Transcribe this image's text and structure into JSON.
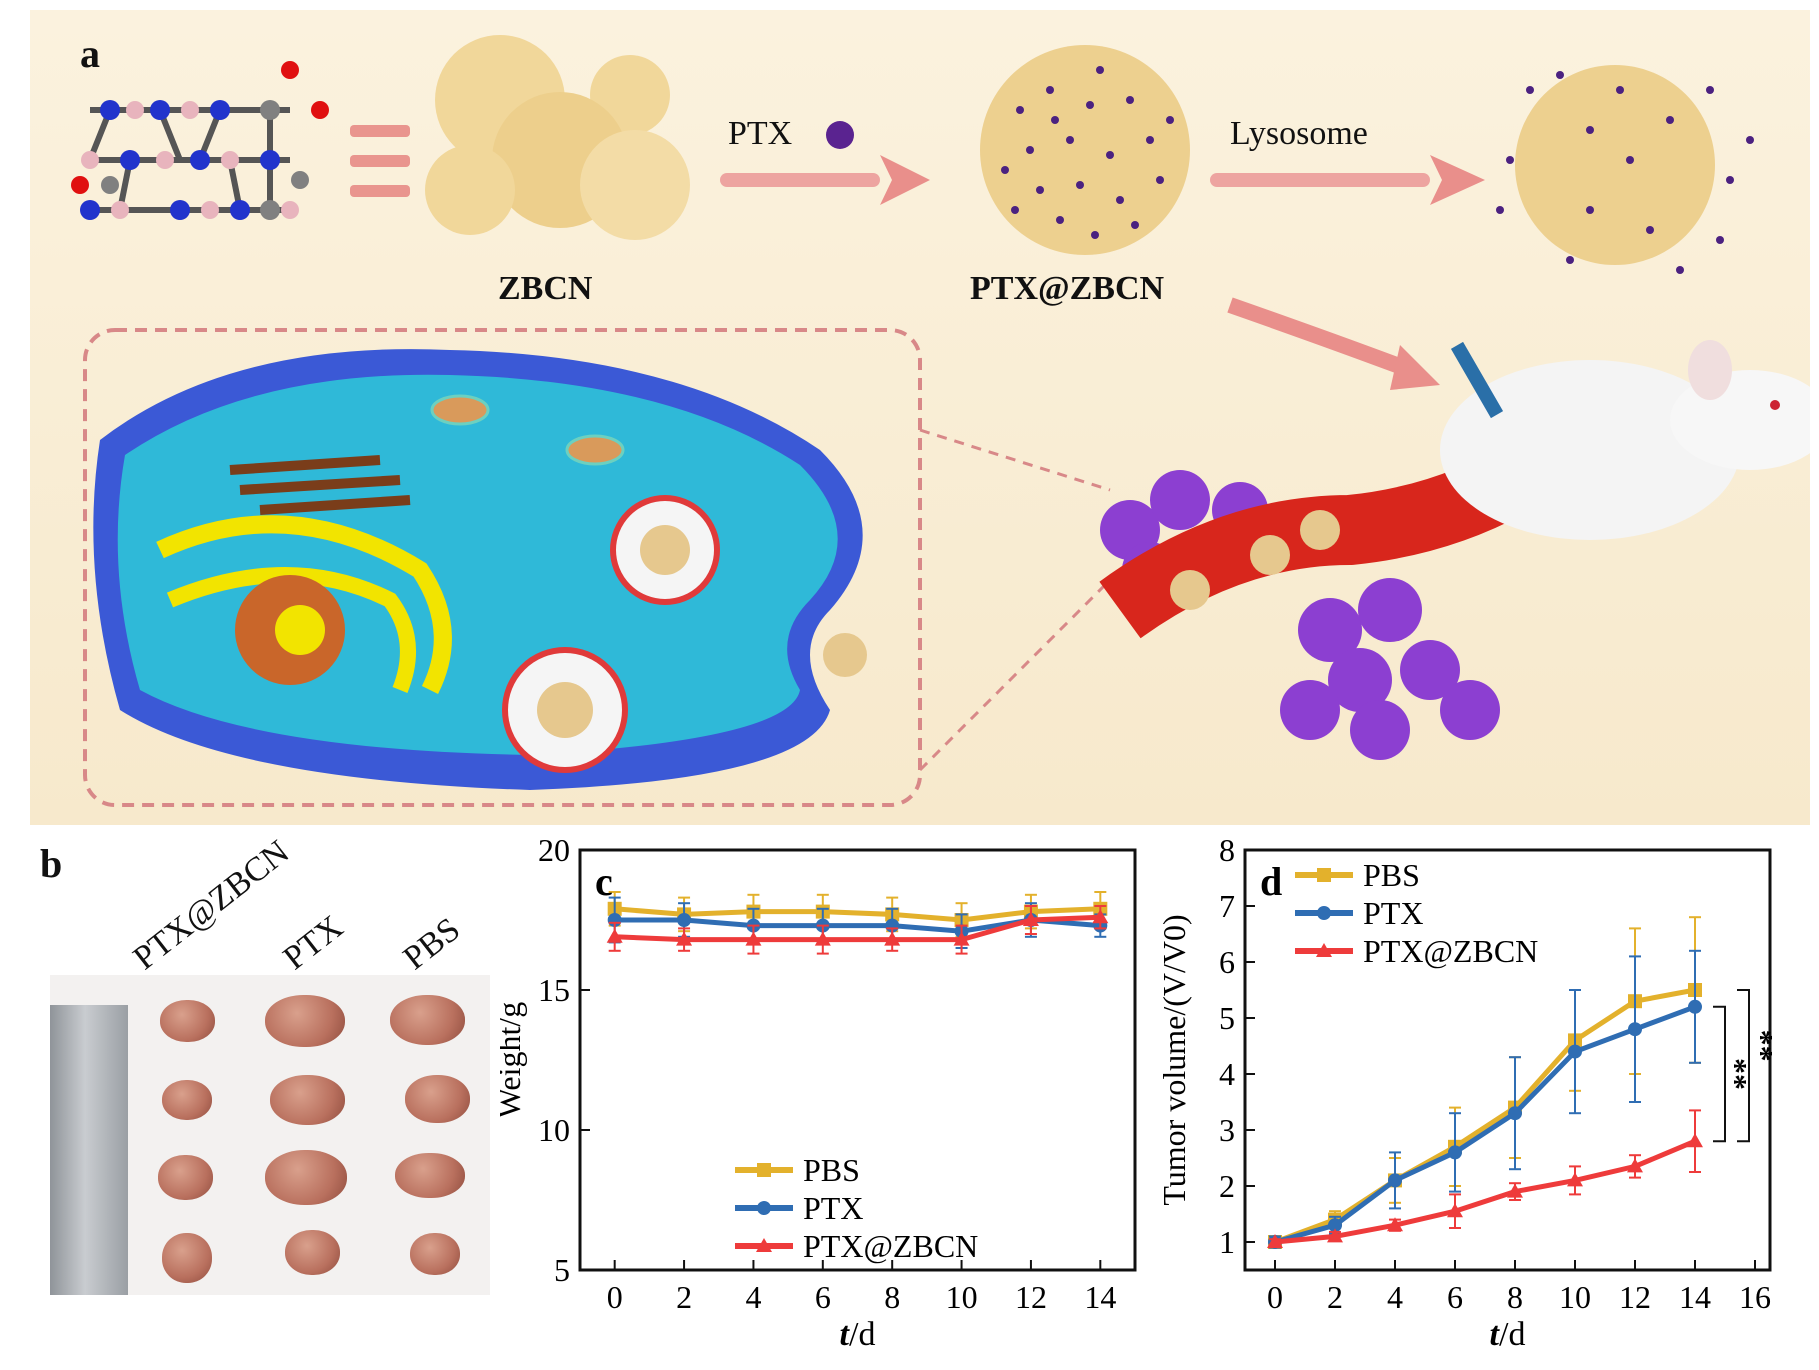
{
  "panel_labels": {
    "a": "a",
    "b": "b",
    "c": "c",
    "d": "d"
  },
  "panel_a": {
    "zbcn": "ZBCN",
    "ptx": "PTX",
    "ptx_zbcn": "PTX@ZBCN",
    "lysosome": "Lysosome"
  },
  "panel_b": {
    "labels": [
      "PTX@ZBCN",
      "PTX",
      "PBS"
    ]
  },
  "colors": {
    "pbs": "#e3b12c",
    "ptx": "#2f6db3",
    "ptx_zbcn": "#ee3b3b"
  },
  "chart_data": [
    {
      "type": "line",
      "panel": "c",
      "xlabel_italic": "t",
      "xlabel_unit": "/d",
      "ylabel": "Weight/g",
      "x": [
        0,
        2,
        4,
        6,
        8,
        10,
        12,
        14
      ],
      "xlim": [
        -1,
        15
      ],
      "ylim": [
        5,
        20
      ],
      "xticks": [
        "0",
        "2",
        "4",
        "6",
        "8",
        "10",
        "12",
        "14"
      ],
      "yticks": [
        "5",
        "10",
        "15",
        "20"
      ],
      "series": [
        {
          "name": "PBS",
          "values": [
            17.9,
            17.7,
            17.8,
            17.8,
            17.7,
            17.5,
            17.8,
            17.9
          ],
          "err": [
            0.6,
            0.6,
            0.6,
            0.6,
            0.6,
            0.6,
            0.6,
            0.6
          ]
        },
        {
          "name": "PTX",
          "values": [
            17.5,
            17.5,
            17.3,
            17.3,
            17.3,
            17.1,
            17.5,
            17.3
          ],
          "err": [
            0.8,
            0.6,
            0.6,
            0.6,
            0.6,
            0.6,
            0.6,
            0.4
          ]
        },
        {
          "name": "PTX@ZBCN",
          "values": [
            16.9,
            16.8,
            16.8,
            16.8,
            16.8,
            16.8,
            17.5,
            17.6
          ],
          "err": [
            0.5,
            0.4,
            0.5,
            0.5,
            0.4,
            0.5,
            0.5,
            0.4
          ]
        }
      ],
      "legend": "bottom-right"
    },
    {
      "type": "line",
      "panel": "d",
      "xlabel_italic": "t",
      "xlabel_unit": "/d",
      "ylabel": "Tumor volume/(V/V0)",
      "x": [
        0,
        2,
        4,
        6,
        8,
        10,
        12,
        14
      ],
      "xlim": [
        -1,
        16.5
      ],
      "ylim": [
        0.5,
        8
      ],
      "xticks": [
        "0",
        "2",
        "4",
        "6",
        "8",
        "10",
        "12",
        "14",
        "16"
      ],
      "yticks": [
        "1",
        "2",
        "3",
        "4",
        "5",
        "6",
        "7",
        "8"
      ],
      "series": [
        {
          "name": "PBS",
          "values": [
            1.0,
            1.4,
            2.1,
            2.7,
            3.4,
            4.6,
            5.3,
            5.5
          ],
          "err": [
            0.1,
            0.15,
            0.4,
            0.7,
            0.9,
            0.9,
            1.3,
            1.3
          ]
        },
        {
          "name": "PTX",
          "values": [
            1.0,
            1.3,
            2.1,
            2.6,
            3.3,
            4.4,
            4.8,
            5.2
          ],
          "err": [
            0.1,
            0.15,
            0.5,
            0.7,
            1.0,
            1.1,
            1.3,
            1.0
          ]
        },
        {
          "name": "PTX@ZBCN",
          "values": [
            1.0,
            1.1,
            1.3,
            1.55,
            1.9,
            2.1,
            2.35,
            2.8
          ],
          "err": [
            0.05,
            0.08,
            0.1,
            0.3,
            0.15,
            0.25,
            0.2,
            0.55
          ]
        }
      ],
      "significance": [
        "**",
        "**"
      ],
      "legend": "top-left"
    }
  ]
}
